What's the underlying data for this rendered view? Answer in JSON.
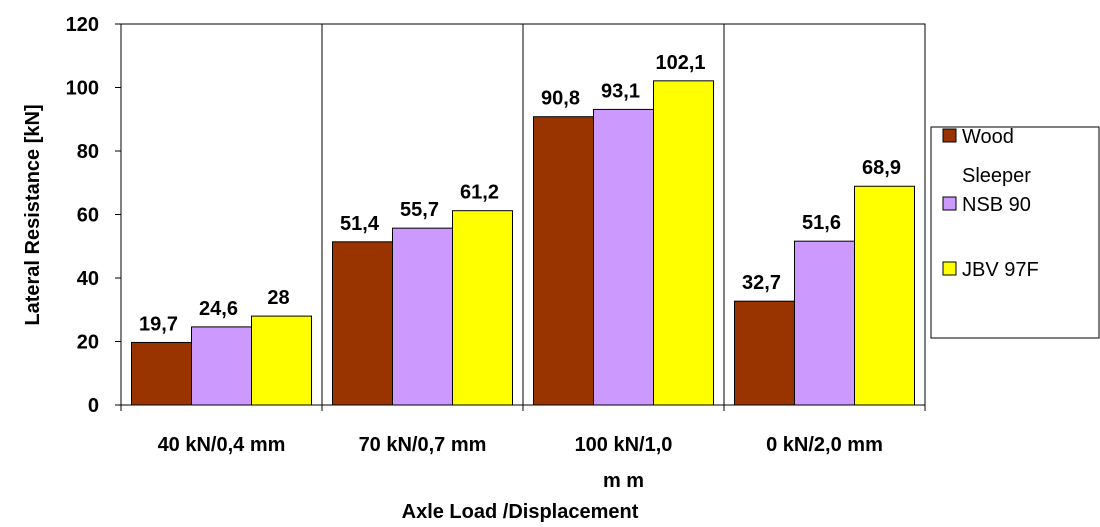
{
  "chart_data": {
    "type": "bar",
    "categories": [
      "40 kN/0,4 mm",
      "70 kN/0,7 mm",
      "100 kN/1,0 mm",
      "0 kN/2,0 mm"
    ],
    "category_display_lines": [
      [
        "40 kN/0,4 mm"
      ],
      [
        "70 kN/0,7 mm"
      ],
      [
        "100 kN/1,0",
        "m m"
      ],
      [
        "0 kN/2,0 mm"
      ]
    ],
    "series": [
      {
        "name": "Wood Sleeper",
        "values": [
          19.7,
          51.4,
          90.8,
          32.7
        ],
        "labels": [
          "19,7",
          "51,4",
          "90,8",
          "32,7"
        ],
        "color": "#993300"
      },
      {
        "name": "NSB 90",
        "values": [
          24.6,
          55.7,
          93.1,
          51.6
        ],
        "labels": [
          "24,6",
          "55,7",
          "93,1",
          "51,6"
        ],
        "color": "#cc99ff"
      },
      {
        "name": "JBV 97F",
        "values": [
          28,
          61.2,
          102.1,
          68.9
        ],
        "labels": [
          "28",
          "61,2",
          "102,1",
          "68,9"
        ],
        "color": "#ffff00"
      }
    ],
    "title": "",
    "xlabel": "Axle Load /Displacement",
    "ylabel": "Lateral Resistance [kN]",
    "ylim": [
      0,
      120
    ],
    "yticks": [
      "0",
      "20",
      "40",
      "60",
      "80",
      "100",
      "120"
    ],
    "grid": "vertical category separators",
    "legend_position": "right"
  },
  "legend": {
    "items": [
      {
        "lines": [
          "Wood",
          "Sleeper"
        ],
        "color": "#993300"
      },
      {
        "lines": [
          "NSB 90"
        ],
        "color": "#cc99ff"
      },
      {
        "lines": [
          "JBV 97F"
        ],
        "color": "#ffff00"
      }
    ]
  }
}
